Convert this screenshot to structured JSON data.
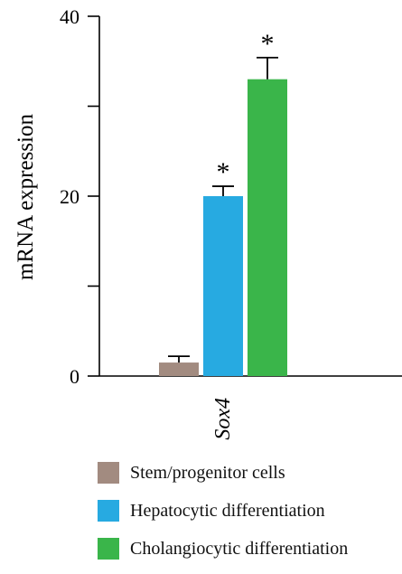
{
  "chart_data": {
    "type": "bar",
    "title": "",
    "xlabel": "",
    "ylabel": "mRNA expression",
    "ylim": [
      0,
      40
    ],
    "yticks": [
      0,
      10,
      20,
      30,
      40
    ],
    "ytick_labels": [
      "0",
      "",
      "20",
      "",
      "40"
    ],
    "categories": [
      "Sox4"
    ],
    "series": [
      {
        "name": "Stem/progenitor cells",
        "values": [
          1.5
        ],
        "errors": [
          0.7
        ],
        "color": "#a28b80",
        "significance": [
          ""
        ]
      },
      {
        "name": "Hepatocytic differentiation",
        "values": [
          20.0
        ],
        "errors": [
          1.1
        ],
        "color": "#27aae1",
        "significance": [
          "*"
        ]
      },
      {
        "name": "Cholangiocytic differentiation",
        "values": [
          33.0
        ],
        "errors": [
          2.4
        ],
        "color": "#3ab54a",
        "significance": [
          "*"
        ]
      }
    ],
    "grid": false,
    "legend_position": "bottom"
  }
}
